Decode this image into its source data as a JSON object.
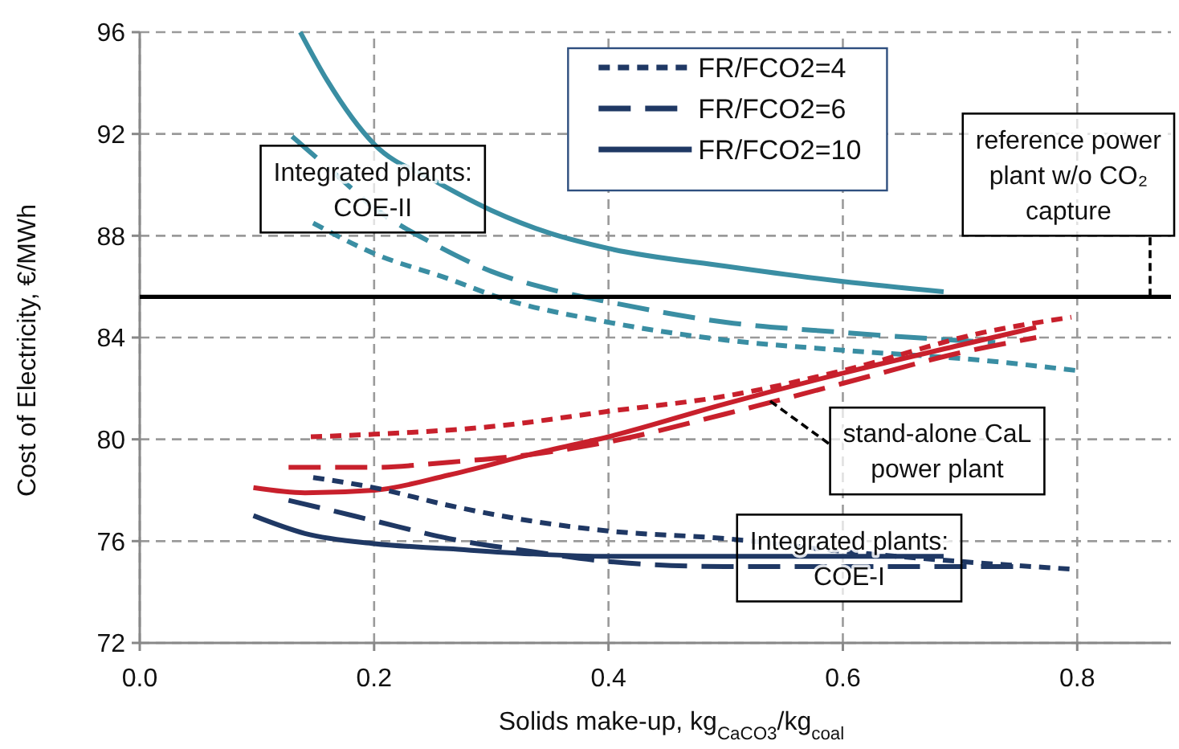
{
  "chart_data": {
    "type": "line",
    "xlabel": "Solids make-up, kg$_{CaCO3}$/kg$_{coal}$",
    "ylabel": "Cost of Electricity, €/MWh",
    "xlim": [
      0,
      0.88
    ],
    "xticks": [
      {
        "value": 0,
        "label": "0.0"
      },
      0.2,
      0.4,
      0.6,
      0.8
    ],
    "ylim": [
      72,
      96
    ],
    "yticks": [
      72,
      76,
      80,
      84,
      88,
      92,
      96
    ],
    "grid": true,
    "legend": "top",
    "series": [
      {
        "color": "#3a8ea3",
        "line_style": "solid",
        "x": [
          0.137,
          0.16,
          0.2,
          0.25,
          0.3,
          0.35,
          0.4,
          0.5,
          0.6,
          0.686
        ],
        "values": [
          96.0,
          94.1,
          91.6,
          90.2,
          89.0,
          88.1,
          87.5,
          86.8,
          86.2,
          85.8
        ]
      },
      {
        "color": "#3a8ea3",
        "line_style": "dashed",
        "x": [
          0.13,
          0.17,
          0.2,
          0.25,
          0.3,
          0.35,
          0.4,
          0.5,
          0.6,
          0.73
        ],
        "values": [
          91.9,
          90.3,
          89.1,
          87.7,
          86.6,
          85.9,
          85.4,
          84.6,
          84.2,
          83.8
        ]
      },
      {
        "color": "#3a8ea3",
        "line_style": "dotted",
        "x": [
          0.148,
          0.2,
          0.264,
          0.305,
          0.4,
          0.5,
          0.6,
          0.72,
          0.8
        ],
        "values": [
          88.5,
          87.3,
          86.3,
          85.6,
          84.6,
          83.9,
          83.5,
          83.1,
          82.7
        ]
      },
      {
        "color": "#c8202c",
        "line_style": "solid",
        "x": [
          0.097,
          0.141,
          0.2,
          0.264,
          0.333,
          0.4,
          0.5,
          0.6,
          0.7,
          0.765
        ],
        "values": [
          78.1,
          77.9,
          78.0,
          78.6,
          79.4,
          80.1,
          81.4,
          82.6,
          83.7,
          84.4
        ]
      },
      {
        "color": "#c8202c",
        "line_style": "dashed",
        "x": [
          0.127,
          0.2,
          0.264,
          0.333,
          0.4,
          0.5,
          0.6,
          0.7,
          0.765
        ],
        "values": [
          78.9,
          78.9,
          79.1,
          79.4,
          79.9,
          81.0,
          82.2,
          83.4,
          84.0
        ]
      },
      {
        "color": "#c8202c",
        "line_style": "dotted",
        "x": [
          0.146,
          0.2,
          0.3,
          0.4,
          0.5,
          0.6,
          0.72,
          0.795
        ],
        "values": [
          80.1,
          80.2,
          80.5,
          81.1,
          81.7,
          82.7,
          84.2,
          84.8
        ]
      },
      {
        "name": "FR/FCO2=4",
        "color": "#1f3864",
        "line_style": "dotted",
        "x": [
          0.148,
          0.2,
          0.264,
          0.333,
          0.4,
          0.5,
          0.6,
          0.7,
          0.795
        ],
        "values": [
          78.5,
          78.1,
          77.4,
          76.8,
          76.4,
          76.1,
          75.6,
          75.2,
          74.9
        ]
      },
      {
        "name": "FR/FCO2=6",
        "color": "#1f3864",
        "line_style": "dashed",
        "x": [
          0.127,
          0.164,
          0.2,
          0.264,
          0.333,
          0.4,
          0.5,
          0.6,
          0.7,
          0.753
        ],
        "values": [
          77.6,
          77.2,
          76.8,
          76.1,
          75.6,
          75.2,
          75.0,
          75.0,
          75.0,
          75.0
        ]
      },
      {
        "name": "FR/FCO2=10",
        "color": "#1f3864",
        "line_style": "solid",
        "x": [
          0.097,
          0.141,
          0.2,
          0.264,
          0.333,
          0.4,
          0.5,
          0.6,
          0.686
        ],
        "values": [
          77.0,
          76.3,
          75.9,
          75.7,
          75.5,
          75.4,
          75.4,
          75.4,
          75.4
        ]
      }
    ],
    "ref_lines": [
      {
        "axis": "y",
        "value": 85.6,
        "label": "reference power plant w/o CO₂ capture",
        "color": "#000000"
      }
    ],
    "annotations": [
      "Integrated plants: COE-II",
      "Integrated plants: COE-I",
      {
        "text": "stand-alone CaL power plant",
        "x": 0.538,
        "y": 81.5
      }
    ]
  }
}
